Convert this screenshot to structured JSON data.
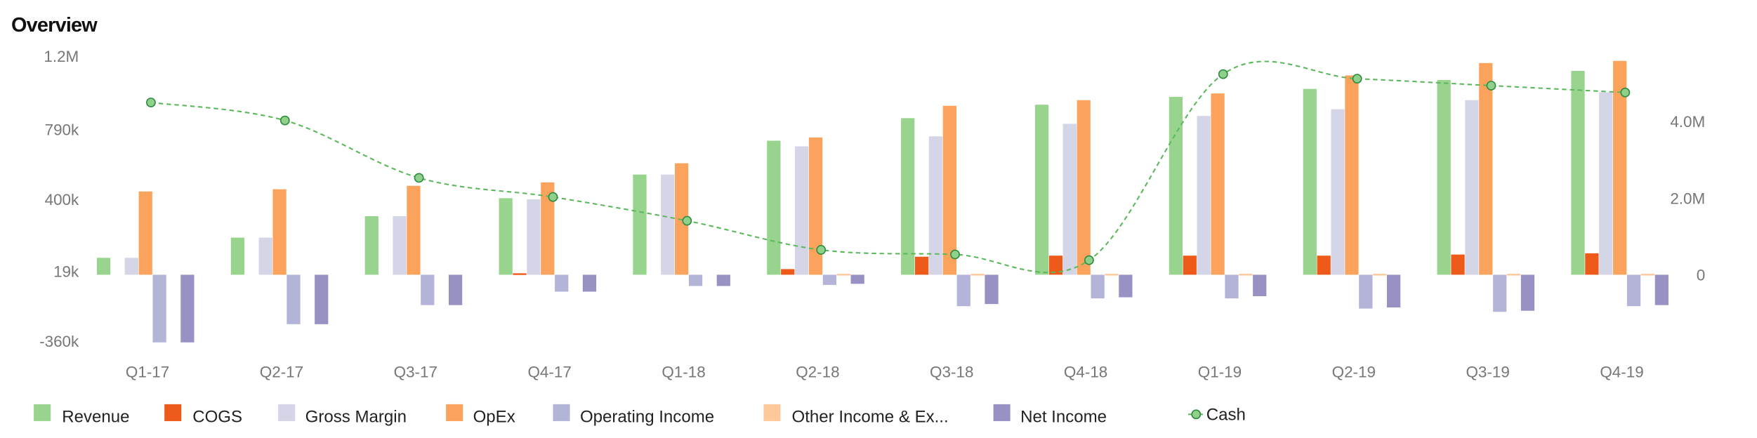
{
  "chart_data": {
    "type": "bar",
    "title": "Overview",
    "categories": [
      "Q1-17",
      "Q2-17",
      "Q3-17",
      "Q4-17",
      "Q1-18",
      "Q2-18",
      "Q3-18",
      "Q4-18",
      "Q1-19",
      "Q2-19",
      "Q3-19",
      "Q4-19"
    ],
    "left_axis": {
      "ticks": [
        "1.2M",
        "790k",
        "400k",
        "19k",
        "-360k"
      ],
      "tick_values": [
        1180000,
        790000,
        400000,
        19000,
        -360000
      ]
    },
    "right_axis": {
      "ticks": [
        "4.0M",
        "2.0M",
        "0"
      ],
      "tick_values": [
        4000000,
        2000000,
        0
      ]
    },
    "series": [
      {
        "name": "Revenue",
        "color": "#98d48e",
        "values": [
          93000,
          204000,
          322000,
          421000,
          551000,
          737000,
          861000,
          935000,
          978000,
          1022000,
          1071000,
          1121000
        ]
      },
      {
        "name": "COGS",
        "color": "#ee5a1a",
        "values": [
          0,
          0,
          0,
          8000,
          0,
          31000,
          99000,
          105000,
          105000,
          105000,
          111000,
          118000
        ]
      },
      {
        "name": "Gross Margin",
        "color": "#d5d5e8",
        "values": [
          93000,
          204000,
          322000,
          415000,
          551000,
          706000,
          761000,
          830000,
          873000,
          910000,
          960000,
          1003000
        ]
      },
      {
        "name": "OpEx",
        "color": "#fba35d",
        "values": [
          458000,
          470000,
          489000,
          508000,
          613000,
          755000,
          929000,
          960000,
          997000,
          1096000,
          1164000,
          1176000
        ]
      },
      {
        "name": "Operating Income",
        "color": "#b4b4d8",
        "values": [
          -372000,
          -272000,
          -167000,
          -93000,
          -62000,
          -56000,
          -173000,
          -130000,
          -130000,
          -186000,
          -204000,
          -173000
        ]
      },
      {
        "name": "Other Income & Ex...",
        "color": "#fdc99a",
        "values": [
          0,
          0,
          0,
          0,
          0,
          5000,
          5000,
          5000,
          5000,
          5000,
          5000,
          5000
        ]
      },
      {
        "name": "Net Income",
        "color": "#9891c4",
        "values": [
          -372000,
          -272000,
          -167000,
          -93000,
          -62000,
          -50000,
          -161000,
          -124000,
          -118000,
          -180000,
          -198000,
          -167000
        ]
      }
    ],
    "line_series": {
      "name": "Cash",
      "axis": "right",
      "color": "#5cb85c",
      "values": [
        4500000,
        4030000,
        2530000,
        2030000,
        1410000,
        650000,
        530000,
        380000,
        5240000,
        5120000,
        4940000,
        4760000
      ]
    },
    "legend_position": "bottom-left",
    "grid": false
  }
}
